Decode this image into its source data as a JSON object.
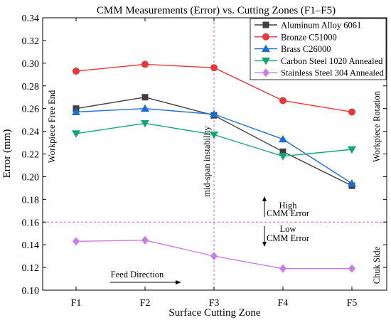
{
  "chart_data": {
    "type": "line",
    "title": "CMM Measurements (Error) vs. Cutting Zones (F1–F5)",
    "xlabel": "Surface Cutting Zone",
    "ylabel": "Error (mm)",
    "categories": [
      "F1",
      "F2",
      "F3",
      "F4",
      "F5"
    ],
    "ylim": [
      0.1,
      0.34
    ],
    "yticks": [
      "0.10",
      "0.12",
      "0.14",
      "0.16",
      "0.18",
      "0.20",
      "0.22",
      "0.24",
      "0.26",
      "0.28",
      "0.30",
      "0.32",
      "0.34"
    ],
    "grid": false,
    "legend_position": "top-right",
    "series": [
      {
        "name": "Aluminum Alloy 6061",
        "values": [
          0.26,
          0.27,
          0.254,
          0.222,
          0.192
        ],
        "color": "#404040",
        "marker": "square"
      },
      {
        "name": "Bronze C51000",
        "values": [
          0.293,
          0.299,
          0.296,
          0.267,
          0.257
        ],
        "color": "#e8373a",
        "marker": "circle"
      },
      {
        "name": "Brass C26000",
        "values": [
          0.257,
          0.26,
          0.255,
          0.233,
          0.194
        ],
        "color": "#1a6fd6",
        "marker": "triangle-up"
      },
      {
        "name": "Carbon Steel 1020 Annealed",
        "values": [
          0.238,
          0.247,
          0.237,
          0.218,
          0.224
        ],
        "color": "#10a86a",
        "marker": "triangle-down"
      },
      {
        "name": "Stainless Steel 304 Annealed",
        "values": [
          0.143,
          0.144,
          0.13,
          0.119,
          0.119
        ],
        "color": "#c77ee6",
        "marker": "diamond"
      }
    ],
    "reference_lines": {
      "vertical_category": "F3",
      "horizontal_value": 0.16,
      "color": "#d64fd6"
    },
    "annotations": {
      "left_side": "Workpiece Free End",
      "right_side": "Workpiece Rotation",
      "bottom_right": "Chuk Side",
      "vertical_line_label": "mid-span instability",
      "high_label_line1": "High",
      "high_label_line2": "CMM Error",
      "low_label_line1": "Low",
      "low_label_line2": "CMM Error",
      "feed_direction": "Feed Direction"
    }
  }
}
